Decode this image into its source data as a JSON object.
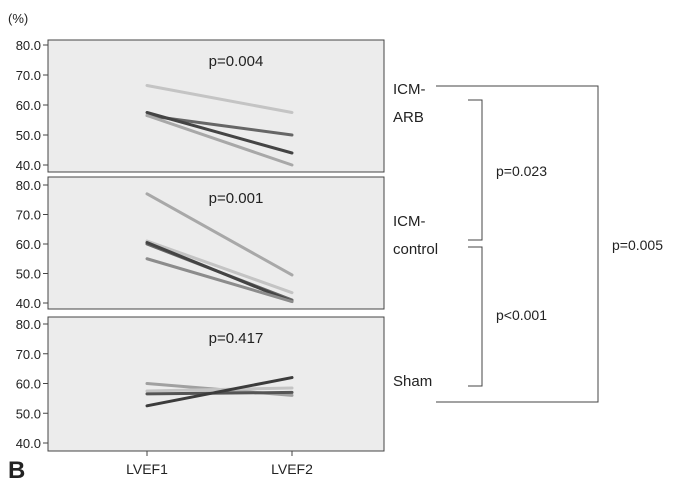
{
  "chart_data": {
    "type": "line",
    "panel_label": "B",
    "y_unit": "(%)",
    "categories": [
      "LVEF1",
      "LVEF2"
    ],
    "ylim": [
      40.0,
      80.0
    ],
    "yticks": [
      "80.0",
      "70.0",
      "60.0",
      "50.0",
      "40.0"
    ],
    "grid": false,
    "background": "#ececec",
    "panels": [
      {
        "group": "ICM-ARB",
        "group_lines": [
          "ICM-",
          "ARB"
        ],
        "p_value": "p=0.004",
        "series": [
          {
            "values": [
              66.5,
              57.5
            ],
            "color": "#c4c4c4"
          },
          {
            "values": [
              56.5,
              50.0
            ],
            "color": "#666666"
          },
          {
            "values": [
              57.5,
              44.0
            ],
            "color": "#444444"
          },
          {
            "values": [
              56.5,
              40.0
            ],
            "color": "#a8a8a8"
          }
        ]
      },
      {
        "group": "ICM-control",
        "group_lines": [
          "ICM-",
          "control"
        ],
        "p_value": "p=0.001",
        "series": [
          {
            "values": [
              77.0,
              49.5
            ],
            "color": "#a8a8a8"
          },
          {
            "values": [
              61.0,
              43.5
            ],
            "color": "#c4c4c4"
          },
          {
            "values": [
              60.0,
              41.0
            ],
            "color": "#666666"
          },
          {
            "values": [
              60.5,
              40.5
            ],
            "color": "#444444"
          },
          {
            "values": [
              55.0,
              40.5
            ],
            "color": "#8c8c8c"
          }
        ]
      },
      {
        "group": "Sham",
        "group_lines": [
          "Sham"
        ],
        "p_value": "p=0.417",
        "series": [
          {
            "values": [
              60.0,
              56.0
            ],
            "color": "#a0a0a0"
          },
          {
            "values": [
              57.5,
              58.5
            ],
            "color": "#c4c4c4"
          },
          {
            "values": [
              56.5,
              57.0
            ],
            "color": "#555555"
          },
          {
            "values": [
              52.5,
              62.0
            ],
            "color": "#3c3c3c"
          }
        ]
      }
    ],
    "comparisons": [
      {
        "between": [
          "ICM-ARB",
          "ICM-control"
        ],
        "p_value": "p=0.023"
      },
      {
        "between": [
          "ICM-control",
          "Sham"
        ],
        "p_value": "p<0.001"
      },
      {
        "between": [
          "ICM-ARB",
          "Sham"
        ],
        "p_value": "p=0.005"
      }
    ]
  }
}
